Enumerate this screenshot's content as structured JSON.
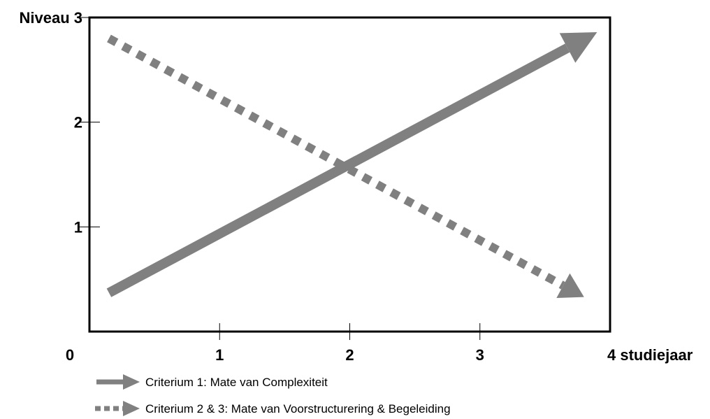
{
  "chart_data": {
    "type": "line",
    "title": "",
    "xlabel": "studiejaar",
    "ylabel": "Niveau",
    "xlim": [
      0,
      4
    ],
    "ylim": [
      0,
      3
    ],
    "x_ticks": [
      {
        "value": 0,
        "label": "0"
      },
      {
        "value": 1,
        "label": "1"
      },
      {
        "value": 2,
        "label": "2"
      },
      {
        "value": 3,
        "label": "3"
      },
      {
        "value": 4,
        "label": "4 studiejaar"
      }
    ],
    "y_ticks": [
      {
        "value": 1,
        "label": "1"
      },
      {
        "value": 2,
        "label": "2"
      },
      {
        "value": 3,
        "label": "Niveau 3"
      }
    ],
    "grid": false,
    "legend_position": "bottom-left",
    "series": [
      {
        "name": "Criterium 1: Mate van Complexiteit",
        "style": "solid-arrow",
        "color": "#808080",
        "x": [
          0.15,
          3.9
        ],
        "y": [
          0.37,
          2.86
        ]
      },
      {
        "name": "Criterium 2 & 3: Mate van Voorstructurering & Begeleiding",
        "style": "dotted-arrow",
        "color": "#808080",
        "x": [
          0.15,
          3.8
        ],
        "y": [
          2.8,
          0.33
        ]
      }
    ]
  }
}
